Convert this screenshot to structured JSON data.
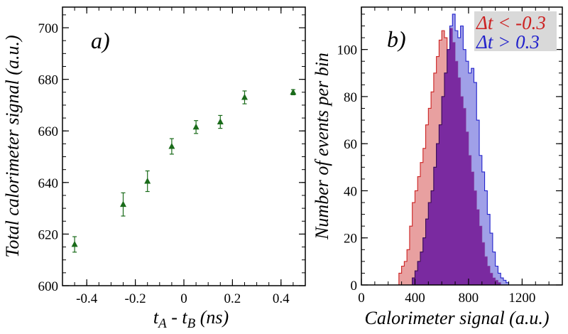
{
  "chart_data": [
    {
      "type": "scatter",
      "panel_label": "a)",
      "xlabel_parts": {
        "t": "t",
        "a": "A",
        "mid": " - t",
        "b": "B",
        "unit": " (ns)"
      },
      "ylabel": "Total calorimeter signal (a.u.)",
      "xlim": [
        -0.5,
        0.5
      ],
      "ylim": [
        600,
        708
      ],
      "x_ticks": [
        -0.4,
        -0.2,
        0,
        0.2,
        0.4
      ],
      "x_tick_labels": [
        "-0.4",
        "-0.2",
        "0",
        "0.2",
        "0.4"
      ],
      "y_ticks": [
        600,
        620,
        640,
        660,
        680,
        700
      ],
      "y_tick_labels": [
        "600",
        "620",
        "640",
        "660",
        "680",
        "700"
      ],
      "marker_color": "#1a6b1a",
      "points": [
        {
          "x": -0.45,
          "y": 616.0,
          "err": 3.0
        },
        {
          "x": -0.25,
          "y": 631.5,
          "err": 4.5
        },
        {
          "x": -0.15,
          "y": 640.5,
          "err": 4.0
        },
        {
          "x": -0.05,
          "y": 654.0,
          "err": 3.0
        },
        {
          "x": 0.05,
          "y": 661.5,
          "err": 2.5
        },
        {
          "x": 0.15,
          "y": 663.5,
          "err": 2.5
        },
        {
          "x": 0.25,
          "y": 673.0,
          "err": 2.5
        },
        {
          "x": 0.45,
          "y": 675.0,
          "err": 1.0
        }
      ]
    },
    {
      "type": "histogram",
      "panel_label": "b)",
      "xlabel": "Calorimeter signal (a.u.)",
      "ylabel": "Number of events per bin",
      "xlim": [
        0,
        1500
      ],
      "ylim": [
        0,
        118
      ],
      "x_ticks": [
        0,
        400,
        800,
        1200
      ],
      "x_tick_labels": [
        "0",
        "400",
        "800",
        "1200"
      ],
      "y_ticks": [
        0,
        20,
        40,
        60,
        80,
        100
      ],
      "y_tick_labels": [
        "0",
        "20",
        "40",
        "60",
        "80",
        "100"
      ],
      "legend_placement": "top-right",
      "series": [
        {
          "name_prefix": "Δt < ",
          "name_value": "-0.3",
          "line_color": "#cc2222",
          "fill_color": "#e08080",
          "bin_width": 20,
          "bin_start": 280,
          "values": [
            5,
            8,
            10,
            15,
            25,
            35,
            40,
            46,
            52,
            58,
            68,
            75,
            82,
            90,
            97,
            104,
            108,
            105,
            100,
            109,
            103,
            95,
            88,
            80,
            75,
            65,
            55,
            48,
            40,
            32,
            25,
            18,
            12,
            8,
            5,
            3,
            2,
            1
          ]
        },
        {
          "name_prefix": "Δt > ",
          "name_value": "0.3",
          "line_color": "#2222cc",
          "fill_color": "#8080e0",
          "bin_width": 20,
          "bin_start": 380,
          "values": [
            3,
            6,
            10,
            14,
            20,
            28,
            35,
            40,
            50,
            60,
            68,
            80,
            90,
            100,
            110,
            115,
            108,
            105,
            110,
            100,
            95,
            90,
            92,
            86,
            70,
            55,
            48,
            40,
            30,
            22,
            14,
            8,
            5,
            3,
            2,
            1
          ]
        }
      ],
      "overlap_color": "#7a2aa0"
    }
  ]
}
